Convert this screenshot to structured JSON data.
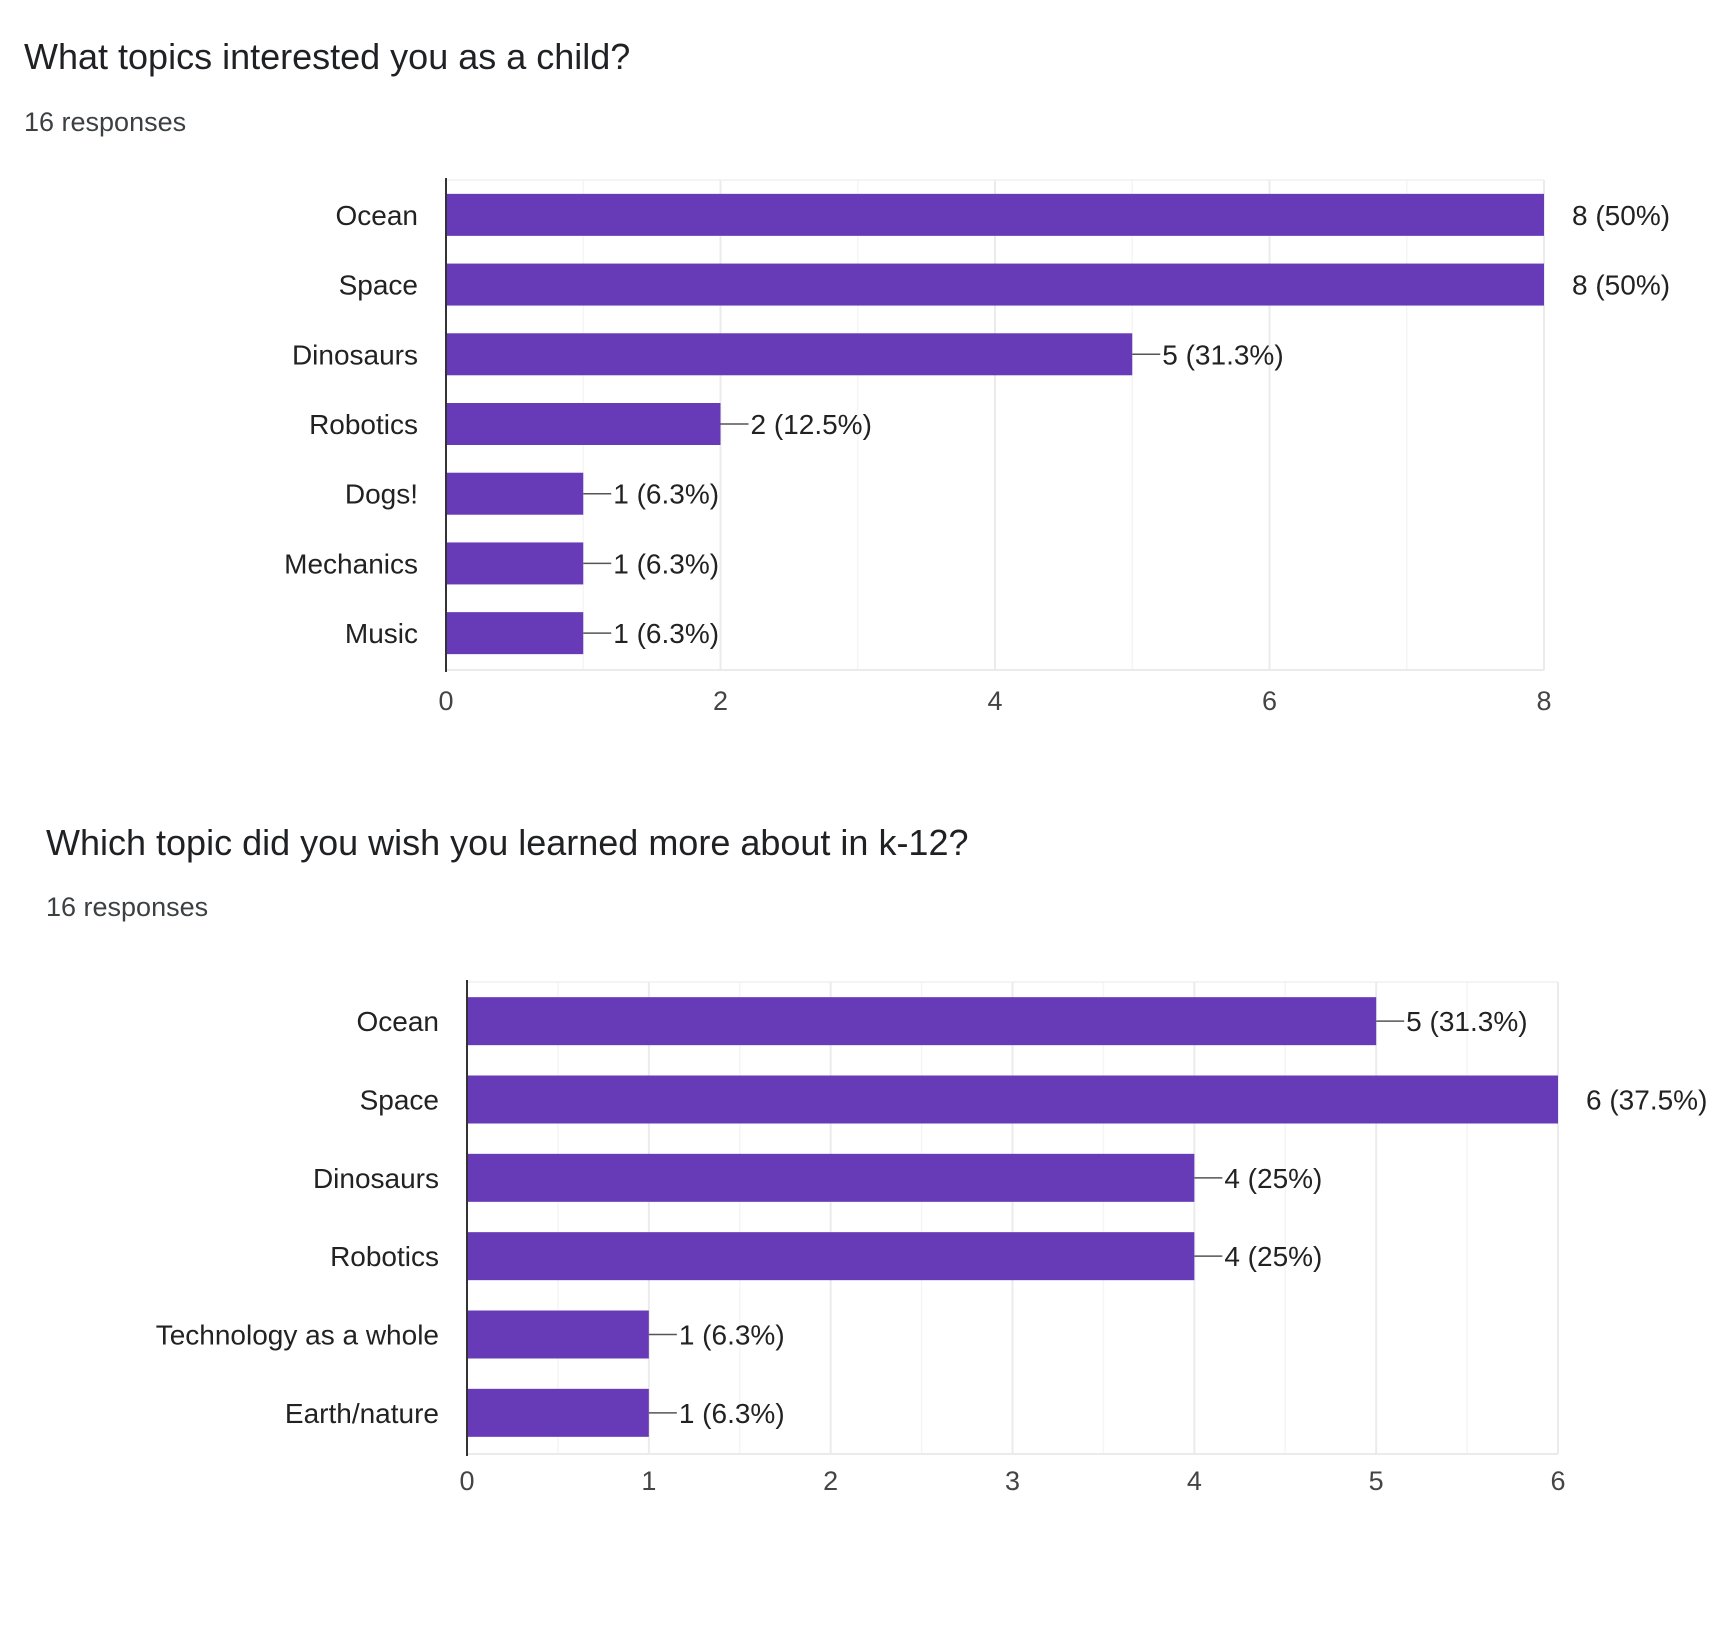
{
  "colors": {
    "bar": "#673AB7",
    "gridline": "#ebebeb",
    "axis": "#333333",
    "label_text": "#222222",
    "tick_text": "#444444"
  },
  "questions": [
    {
      "title": "What topics interested you as a child?",
      "responses": "16 responses"
    },
    {
      "title": "Which topic did you wish you learned more about in k-12?",
      "responses": "16 responses"
    }
  ],
  "chart_data": [
    {
      "type": "bar",
      "orientation": "horizontal",
      "categories": [
        "Ocean",
        "Space",
        "Dinosaurs",
        "Robotics",
        "Dogs!",
        "Mechanics",
        "Music"
      ],
      "values": [
        8,
        8,
        5,
        2,
        1,
        1,
        1
      ],
      "data_labels": [
        "8 (50%)",
        "8 (50%)",
        "5 (31.3%)",
        "2 (12.5%)",
        "1 (6.3%)",
        "1 (6.3%)",
        "1 (6.3%)"
      ],
      "xlim": [
        0,
        8
      ],
      "xticks": [
        0,
        2,
        4,
        6,
        8
      ],
      "grid": true
    },
    {
      "type": "bar",
      "orientation": "horizontal",
      "categories": [
        "Ocean",
        "Space",
        "Dinosaurs",
        "Robotics",
        "Technology as a whole",
        "Earth/nature"
      ],
      "values": [
        5,
        6,
        4,
        4,
        1,
        1
      ],
      "data_labels": [
        "5 (31.3%)",
        "6 (37.5%)",
        "4 (25%)",
        "4 (25%)",
        "1 (6.3%)",
        "1 (6.3%)"
      ],
      "xlim": [
        0,
        6
      ],
      "xticks": [
        0,
        1,
        2,
        3,
        4,
        5,
        6
      ],
      "grid": true
    }
  ]
}
